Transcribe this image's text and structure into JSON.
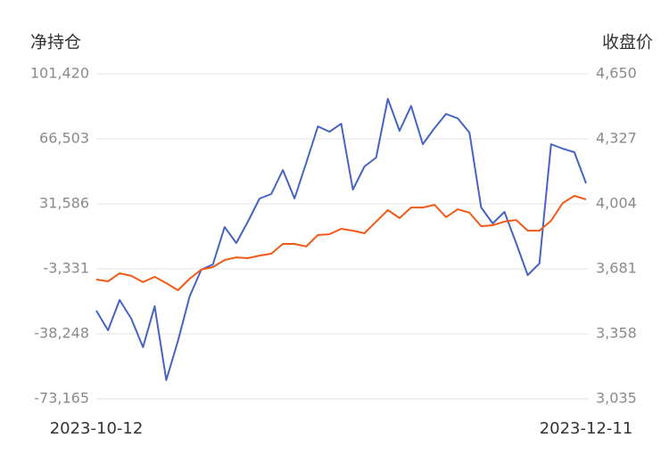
{
  "chart_data": {
    "type": "line",
    "y_label": "净持仓",
    "y2_label": "收盘价",
    "categories": [
      "2023-10-12",
      null,
      null,
      null,
      null,
      null,
      null,
      null,
      null,
      null,
      null,
      null,
      null,
      null,
      null,
      null,
      null,
      null,
      null,
      null,
      null,
      null,
      null,
      null,
      null,
      null,
      null,
      null,
      null,
      null,
      null,
      null,
      null,
      null,
      null,
      null,
      null,
      null,
      null,
      null,
      null,
      null,
      "2023-12-11"
    ],
    "ylim": [
      -73165,
      101420
    ],
    "yticks": [
      {
        "value": -73165,
        "label": "-73,165"
      },
      {
        "value": -38248,
        "label": "-38,248"
      },
      {
        "value": -3331,
        "label": "-3,331"
      },
      {
        "value": 31586,
        "label": "31,586"
      },
      {
        "value": 66503,
        "label": "66,503"
      },
      {
        "value": 101420,
        "label": "101,420"
      }
    ],
    "y2lim": [
      3035,
      4650
    ],
    "y2ticks": [
      {
        "value": 3035,
        "label": "3,035"
      },
      {
        "value": 3358,
        "label": "3,358"
      },
      {
        "value": 3681,
        "label": "3,681"
      },
      {
        "value": 4004,
        "label": "4,004"
      },
      {
        "value": 4327,
        "label": "4,327"
      },
      {
        "value": 4650,
        "label": "4,650"
      }
    ],
    "grid": true,
    "series": [
      {
        "color": "#4763c2",
        "values": [
          -25808,
          -36330,
          -20070,
          -30115,
          -45420,
          -23420,
          -63120,
          -42070,
          -18155,
          -3805,
          -935,
          19150,
          10540,
          22020,
          34460,
          36850,
          49765,
          34460,
          53590,
          73200,
          70330,
          74635,
          39240,
          51680,
          56460,
          88030,
          70810,
          84200,
          63630,
          72240,
          79900,
          77500,
          69850,
          29670,
          21060,
          27280,
          10540,
          -6680,
          -460,
          63630,
          61240,
          59330,
          42590
        ]
      },
      {
        "color": "#f15a16",
        "axis": "y2",
        "values": [
          3628,
          3619,
          3659,
          3646,
          3615,
          3641,
          3610,
          3575,
          3632,
          3677,
          3690,
          3725,
          3738,
          3734,
          3747,
          3756,
          3805,
          3805,
          3792,
          3849,
          3853,
          3880,
          3871,
          3858,
          3916,
          3973,
          3933,
          3986,
          3986,
          3999,
          3938,
          3977,
          3960,
          3893,
          3898,
          3916,
          3924,
          3871,
          3871,
          3920,
          4008,
          4044,
          4026
        ]
      }
    ]
  }
}
